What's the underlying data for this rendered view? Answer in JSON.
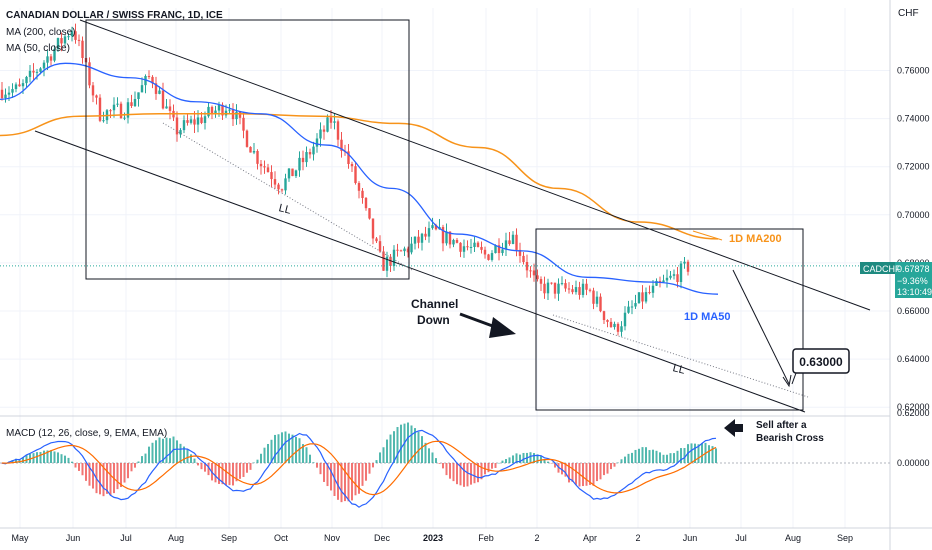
{
  "header": {
    "title": "CANADIAN DOLLAR / SWISS FRANC, 1D, ICE",
    "ma200_label": "MA (200, close)",
    "ma50_label": "MA (50, close)",
    "currency": "CHF"
  },
  "price_badge": {
    "symbol": "CADCHF",
    "price": "0.67878",
    "change": "−9.36%",
    "countdown": "13:10:49"
  },
  "annotations": {
    "channel": "Channel",
    "down": "Down",
    "ll_1": "LL",
    "ll_2": "LL",
    "ma200": "1D MA200",
    "ma50": "1D MA50",
    "target": "0.63000",
    "sell_1": "Sell after a",
    "sell_2": "Bearish Cross"
  },
  "macd_label": "MACD (12, 26, close, 9, EMA, EMA)",
  "colors": {
    "up": "#26a69a",
    "down": "#ef5350",
    "ma50": "#2962ff",
    "ma200": "#f7931a",
    "macd": "#2962ff",
    "signal": "#ff6d00",
    "hist_up": "#26a69a",
    "hist_down": "#ef5350"
  },
  "chart_data": [
    {
      "type": "candlestick",
      "title": "CANADIAN DOLLAR / SWISS FRANC, 1D, ICE",
      "ylabel": "CHF",
      "ylim": [
        0.618,
        0.786
      ],
      "y_ticks": [
        "0.62000",
        "0.64000",
        "0.66000",
        "0.68000",
        "0.70000",
        "0.72000",
        "0.74000",
        "0.76000"
      ],
      "x_ticks": [
        "May",
        "Jun",
        "Jul",
        "Aug",
        "Sep",
        "Oct",
        "Nov",
        "Dec",
        "2023",
        "Feb",
        "2",
        "Apr",
        "2",
        "Jun",
        "Jul",
        "Aug",
        "Sep"
      ],
      "last_price": 0.67878,
      "target": 0.63,
      "close_path": [
        {
          "x": "May",
          "y": 0.752
        },
        {
          "x": "Jun",
          "y": 0.778
        },
        {
          "x": "Jun",
          "y": 0.742
        },
        {
          "x": "Jul",
          "y": 0.744
        },
        {
          "x": "Jul",
          "y": 0.758
        },
        {
          "x": "Aug",
          "y": 0.735
        },
        {
          "x": "Sep",
          "y": 0.746
        },
        {
          "x": "Sep",
          "y": 0.725
        },
        {
          "x": "Oct",
          "y": 0.712
        },
        {
          "x": "Oct",
          "y": 0.724
        },
        {
          "x": "Nov",
          "y": 0.74
        },
        {
          "x": "Nov",
          "y": 0.712
        },
        {
          "x": "Dec",
          "y": 0.679
        },
        {
          "x": "2023",
          "y": 0.693
        },
        {
          "x": "Feb",
          "y": 0.683
        },
        {
          "x": "Feb",
          "y": 0.692
        },
        {
          "x": "2",
          "y": 0.67
        },
        {
          "x": "Apr",
          "y": 0.668
        },
        {
          "x": "Apr",
          "y": 0.652
        },
        {
          "x": "2",
          "y": 0.664
        },
        {
          "x": "Jun",
          "y": 0.679
        }
      ],
      "series": [
        {
          "name": "MA (200, close)",
          "values": [
            0.733,
            0.741,
            0.742,
            0.742,
            0.741,
            0.738,
            0.728,
            0.711,
            0.697,
            0.69
          ]
        },
        {
          "name": "MA (50, close)",
          "values": [
            0.748,
            0.763,
            0.757,
            0.747,
            0.742,
            0.729,
            0.711,
            0.692,
            0.685,
            0.674,
            0.672,
            0.667
          ]
        }
      ]
    },
    {
      "type": "bar",
      "title": "MACD (12, 26, close, 9, EMA, EMA)",
      "y_ticks": [
        "0.00000"
      ],
      "macd_path": [
        0.0,
        0.006,
        -0.01,
        0.004,
        -0.008,
        0.008,
        -0.012,
        0.009,
        -0.004,
        0.002,
        -0.01,
        -0.002,
        0.007
      ]
    }
  ]
}
